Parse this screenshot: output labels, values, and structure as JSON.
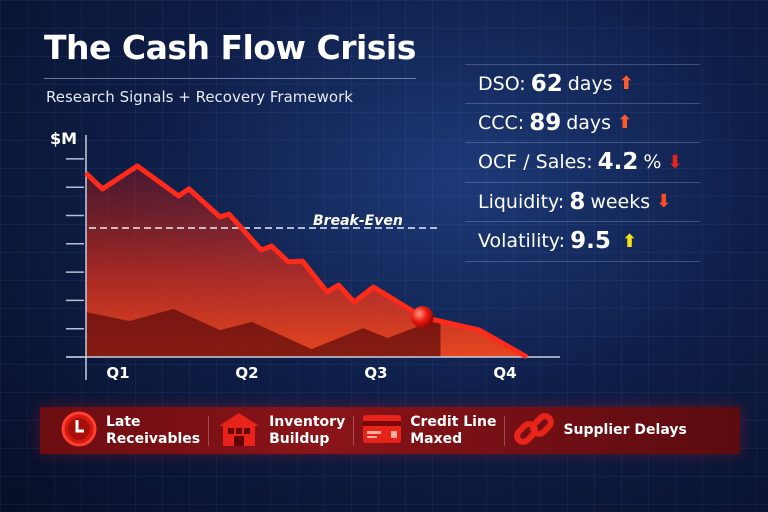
{
  "title": "The Cash Flow Crisis",
  "subtitle": "Research Signals + Recovery Framework",
  "metrics": [
    {
      "label": "DSO:",
      "value": "62",
      "unit": "days",
      "trend": "up",
      "color": "#ff5a2a"
    },
    {
      "label": "CCC:",
      "value": "89",
      "unit": "days",
      "trend": "up",
      "color": "#ff5a2a"
    },
    {
      "label": "OCF / Sales:",
      "value": "4.2",
      "unit": "%",
      "trend": "down",
      "color": "#e8231a"
    },
    {
      "label": "Liquidity:",
      "value": "8",
      "unit": "weeks",
      "trend": "down",
      "color": "#ff4a22"
    },
    {
      "label": "Volatility:",
      "value": "9.5",
      "unit": "",
      "trend": "up",
      "color": "#f2e21a"
    }
  ],
  "factors": [
    {
      "icon": "clock-icon",
      "line1": "Late",
      "line2": "Receivables"
    },
    {
      "icon": "warehouse-icon",
      "line1": "Inventory",
      "line2": "Buildup"
    },
    {
      "icon": "credit-card-icon",
      "line1": "Credit Line",
      "line2": "Maxed"
    },
    {
      "icon": "chain-link-icon",
      "line1": "Supplier Delays",
      "line2": ""
    }
  ],
  "chart_data": {
    "type": "area",
    "ylabel": "$M",
    "categories": [
      "Q1",
      "Q2",
      "Q3",
      "Q4"
    ],
    "y_ticks_count": 8,
    "grid": true,
    "line_color": "#ff2a1a",
    "series": [
      {
        "x": [
          0.75,
          0.88,
          1.15,
          1.47,
          1.55,
          1.79,
          1.86,
          2.11,
          2.19,
          2.32,
          2.43,
          2.62,
          2.71,
          2.83,
          2.98,
          3.36,
          3.8,
          4.17
        ],
        "y": [
          6.5,
          5.94,
          6.75,
          5.69,
          5.94,
          4.95,
          5.05,
          3.78,
          3.92,
          3.36,
          3.39,
          2.3,
          2.54,
          1.94,
          2.47,
          1.41,
          0.95,
          0
        ]
      },
      {
        "x": [
          0.75,
          1.09,
          1.43,
          1.79,
          2.04,
          2.5,
          2.9,
          3.09,
          3.5
        ],
        "y": [
          1.59,
          1.27,
          1.7,
          0.95,
          1.24,
          0.28,
          1.02,
          0.67,
          1.38
        ]
      }
    ],
    "highlight_point": {
      "x": 3.36,
      "y": 1.41
    },
    "reference_line": {
      "label": "Break-Even",
      "y": 4.56
    }
  }
}
